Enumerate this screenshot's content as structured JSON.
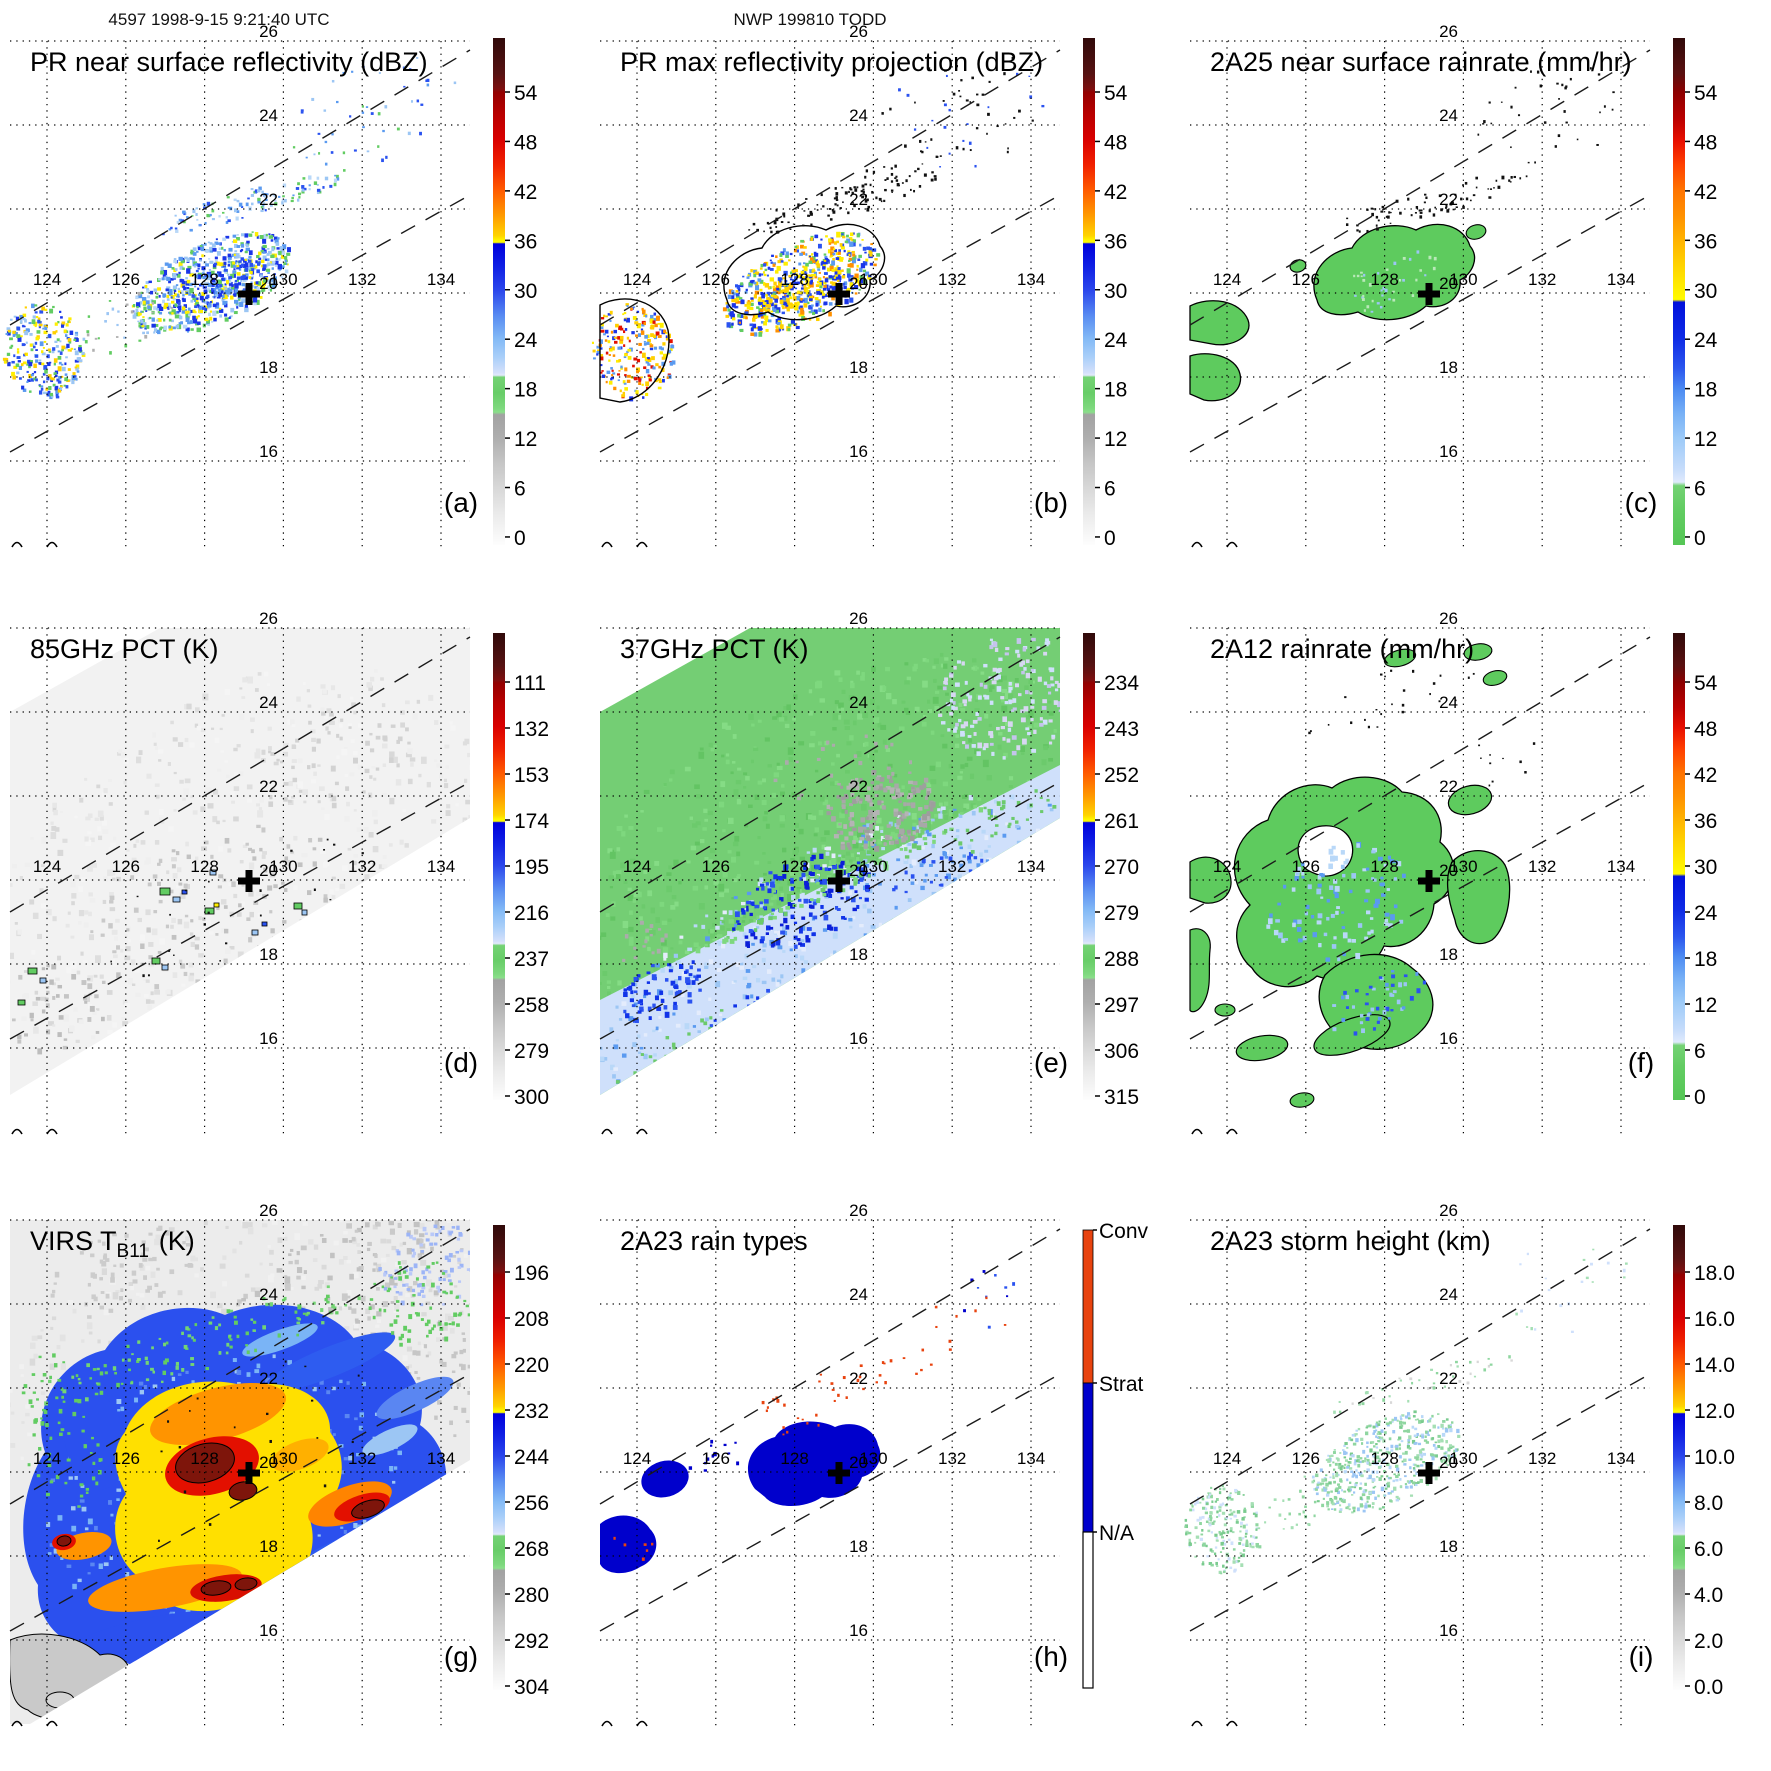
{
  "header": {
    "left": "4597 1998-9-15 9:21:40 UTC",
    "center": "NWP 199810 TODD"
  },
  "map": {
    "lon_labels": [
      "124",
      "126",
      "128",
      "130",
      "132",
      "134"
    ],
    "lat_labels": [
      "26",
      "24",
      "22",
      "20",
      "18",
      "16"
    ]
  },
  "colors": {
    "rain_green": "#5ecb5e",
    "strat_blue": "#0000cc",
    "conv_orange": "#e8430f",
    "yellow": "#ffee00",
    "deep_blue": "#1a35e8",
    "light_blue": "#9cc6f4",
    "dark_red": "#8b0000"
  },
  "panels": [
    {
      "id": "a",
      "letter": "(a)",
      "title": "PR near surface reflectivity (dBZ)",
      "scheme": "A",
      "cb_ticks": [
        "54",
        "48",
        "42",
        "36",
        "30",
        "24",
        "18",
        "12",
        "6",
        "0"
      ]
    },
    {
      "id": "b",
      "letter": "(b)",
      "title": "PR max reflectivity projection (dBZ)",
      "scheme": "A",
      "cb_ticks": [
        "54",
        "48",
        "42",
        "36",
        "30",
        "24",
        "18",
        "12",
        "6",
        "0"
      ]
    },
    {
      "id": "c",
      "letter": "(c)",
      "title": "2A25 near surface rainrate (mm/hr)",
      "scheme": "B",
      "cb_ticks": [
        "54",
        "48",
        "42",
        "36",
        "30",
        "24",
        "18",
        "12",
        "6",
        "0"
      ]
    },
    {
      "id": "d",
      "letter": "(d)",
      "title": "85GHz PCT (K)",
      "scheme": "A",
      "cb_ticks": [
        "111",
        "132",
        "153",
        "174",
        "195",
        "216",
        "237",
        "258",
        "279",
        "300"
      ]
    },
    {
      "id": "e",
      "letter": "(e)",
      "title": "37GHz PCT (K)",
      "scheme": "A",
      "cb_ticks": [
        "234",
        "243",
        "252",
        "261",
        "270",
        "279",
        "288",
        "297",
        "306",
        "315"
      ]
    },
    {
      "id": "f",
      "letter": "(f)",
      "title": "2A12 rainrate (mm/hr)",
      "scheme": "B",
      "cb_ticks": [
        "54",
        "48",
        "42",
        "36",
        "30",
        "24",
        "18",
        "12",
        "6",
        "0"
      ]
    },
    {
      "id": "g",
      "letter": "(g)",
      "title": "VIRS T_B11 (K)",
      "scheme": "A",
      "title_parts": [
        {
          "text": "VIRS T"
        },
        {
          "sub": "B11"
        },
        {
          "text": " (K)"
        }
      ],
      "cb_ticks": [
        "196",
        "208",
        "220",
        "232",
        "244",
        "256",
        "268",
        "280",
        "292",
        "304"
      ]
    },
    {
      "id": "h",
      "letter": "(h)",
      "title": "2A23 rain types",
      "scheme": "TYPES",
      "cb_labels": [
        "Conv",
        "Strat",
        "N/A"
      ]
    },
    {
      "id": "i",
      "letter": "(i)",
      "title": "2A23 storm height (km)",
      "scheme": "A",
      "cb_ticks": [
        "18.0",
        "16.0",
        "14.0",
        "12.0",
        "10.0",
        "8.0",
        "6.0",
        "4.0",
        "2.0",
        "0.0"
      ]
    }
  ],
  "chart_data": [
    {
      "panel": "a",
      "type": "heatmap",
      "title": "PR near surface reflectivity (dBZ)",
      "units": "dBZ",
      "colorbar_ticks": [
        54,
        48,
        42,
        36,
        30,
        24,
        18,
        12,
        6,
        0
      ],
      "lon_ticks": [
        124,
        126,
        128,
        130,
        132,
        134
      ],
      "lat_ticks": [
        26,
        24,
        22,
        20,
        18,
        16
      ],
      "marker": {
        "lon": 129.8,
        "lat": 20.1
      },
      "notes": "TRMM PR swath (two dashed parallel edges SW-NE); scattered 18-40 dBZ echoes 125.5-130E / 19-22N and near 123.5-124.5E / 17.5-19N"
    },
    {
      "panel": "b",
      "type": "heatmap",
      "title": "PR max reflectivity projection (dBZ)",
      "units": "dBZ",
      "colorbar_ticks": [
        54,
        48,
        42,
        36,
        30,
        24,
        18,
        12,
        6,
        0
      ],
      "lon_ticks": [
        124,
        126,
        128,
        130,
        132,
        134
      ],
      "lat_ticks": [
        26,
        24,
        22,
        20,
        18,
        16
      ],
      "marker": {
        "lon": 129.8,
        "lat": 20.1
      },
      "notes": "Same echoes as (a) but stronger (yellow/orange cores), black contours and scattered black pixels"
    },
    {
      "panel": "c",
      "type": "heatmap",
      "title": "2A25 near surface rainrate (mm/hr)",
      "units": "mm/hr",
      "colorbar_ticks": [
        54,
        48,
        42,
        36,
        30,
        24,
        18,
        12,
        6,
        0
      ],
      "lon_ticks": [
        124,
        126,
        128,
        130,
        132,
        134
      ],
      "lat_ticks": [
        26,
        24,
        22,
        20,
        18,
        16
      ],
      "marker": {
        "lon": 129.8,
        "lat": 20.1
      },
      "notes": "Light rain (0-6 mm/hr, green) regions with black contours matching PR echo areas"
    },
    {
      "panel": "d",
      "type": "heatmap",
      "title": "85GHz PCT (K)",
      "units": "K",
      "colorbar_ticks": [
        111,
        132,
        153,
        174,
        195,
        216,
        237,
        258,
        279,
        300
      ],
      "lon_ticks": [
        124,
        126,
        128,
        130,
        132,
        134
      ],
      "lat_ticks": [
        26,
        24,
        22,
        20,
        18,
        16
      ],
      "marker": {
        "lon": 129.8,
        "lat": 20.1
      },
      "notes": "TMI swath, mostly warm (~290 K, near-white) with small depressed-PCT cells (green/blue, 200-240 K) near 127.5-130E / 18-20.5N"
    },
    {
      "panel": "e",
      "type": "heatmap",
      "title": "37GHz PCT (K)",
      "units": "K",
      "colorbar_ticks": [
        234,
        243,
        252,
        261,
        270,
        279,
        288,
        297,
        306,
        315
      ],
      "lon_ticks": [
        124,
        126,
        128,
        130,
        132,
        134
      ],
      "lat_ticks": [
        26,
        24,
        22,
        20,
        18,
        16
      ],
      "marker": {
        "lon": 129.8,
        "lat": 20.1
      },
      "notes": "Green (~288 K) over most of swath, gray patch (~300 K) near 129-130.5E/22N, pale-blue/blue (270-280 K) south of 20N with small yellow (~261 K) cells"
    },
    {
      "panel": "f",
      "type": "heatmap",
      "title": "2A12 rainrate (mm/hr)",
      "units": "mm/hr",
      "colorbar_ticks": [
        54,
        48,
        42,
        36,
        30,
        24,
        18,
        12,
        6,
        0
      ],
      "lon_ticks": [
        124,
        126,
        128,
        130,
        132,
        134
      ],
      "lat_ticks": [
        26,
        24,
        22,
        20,
        18,
        16
      ],
      "marker": {
        "lon": 129.8,
        "lat": 20.1
      },
      "notes": "Broad 0-6 mm/hr (green, black-contoured) shield 125-132E / 17-21N with embedded 6-18 mm/hr (light blue) bands"
    },
    {
      "panel": "g",
      "type": "heatmap",
      "title": "VIRS T_B11 (K)",
      "units": "K",
      "colorbar_ticks": [
        196,
        208,
        220,
        232,
        244,
        256,
        268,
        280,
        292,
        304
      ],
      "lon_ticks": [
        124,
        126,
        128,
        130,
        132,
        134
      ],
      "lat_ticks": [
        26,
        24,
        22,
        20,
        18,
        16
      ],
      "marker": {
        "lon": 129.8,
        "lat": 20.1
      },
      "notes": "Tropical cyclone cloud shield: cold core <208 K (red/dark-red, black-contoured) near 127.5-128.5E/19.5-20.5N surrounded by yellow/orange (220-232 K) and blue (244-256 K) bands; warm gray background ~290-300 K"
    },
    {
      "panel": "h",
      "type": "categorical-map",
      "title": "2A23 rain types",
      "categories": [
        "Conv",
        "Strat",
        "N/A"
      ],
      "category_colors": {
        "Conv": "#e8430f",
        "Strat": "#0000cc",
        "N/A": "#ffffff"
      },
      "lon_ticks": [
        124,
        126,
        128,
        130,
        132,
        134
      ],
      "lat_ticks": [
        26,
        24,
        22,
        20,
        18,
        16
      ],
      "marker": {
        "lon": 129.8,
        "lat": 20.1
      },
      "notes": "Stratiform (blue) blobs 127-129.5E/19.5-20.6N and 123.5-124.5E/17.8-19N; sparse convective (orange) pixels along 21-23.5N arc"
    },
    {
      "panel": "i",
      "type": "heatmap",
      "title": "2A23 storm height (km)",
      "units": "km",
      "colorbar_ticks": [
        18.0,
        16.0,
        14.0,
        12.0,
        10.0,
        8.0,
        6.0,
        4.0,
        2.0,
        0.0
      ],
      "lon_ticks": [
        124,
        126,
        128,
        130,
        132,
        134
      ],
      "lat_ticks": [
        26,
        24,
        22,
        20,
        18,
        16
      ],
      "marker": {
        "lon": 129.8,
        "lat": 20.1
      },
      "notes": "Storm heights mostly 4-8 km (pale green/light blue speckle) over the PR echo regions"
    }
  ]
}
